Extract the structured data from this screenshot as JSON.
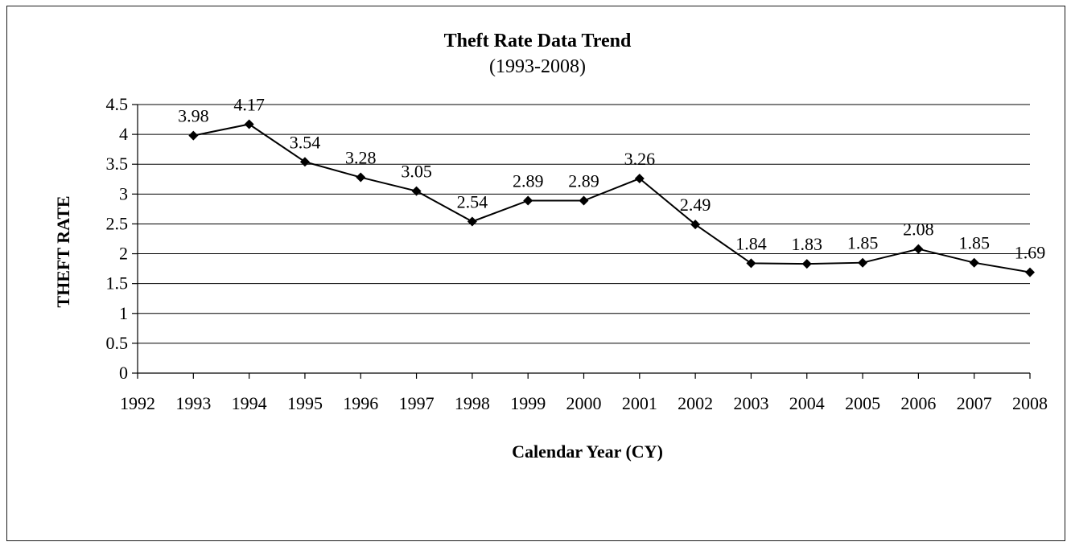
{
  "chart_data": {
    "type": "line",
    "title": "Theft Rate Data Trend",
    "subtitle": "(1993-2008)",
    "xlabel": "Calendar Year (CY)",
    "ylabel": "THEFT RATE",
    "x_tick_labels": [
      "1992",
      "1993",
      "1994",
      "1995",
      "1996",
      "1997",
      "1998",
      "1999",
      "2000",
      "2001",
      "2002",
      "2003",
      "2004",
      "2005",
      "2006",
      "2007",
      "2008"
    ],
    "y_tick_labels": [
      "0",
      "0.5",
      "1",
      "1.5",
      "2",
      "2.5",
      "3",
      "3.5",
      "4",
      "4.5"
    ],
    "ylim": [
      0,
      4.5
    ],
    "y_step": 0.5,
    "xlim": [
      1992,
      2008
    ],
    "grid": true,
    "legend": false,
    "series": [
      {
        "x": [
          1993,
          1994,
          1995,
          1996,
          1997,
          1998,
          1999,
          2000,
          2001,
          2002,
          2003,
          2004,
          2005,
          2006,
          2007,
          2008
        ],
        "y": [
          3.98,
          4.17,
          3.54,
          3.28,
          3.05,
          2.54,
          2.89,
          2.89,
          3.26,
          2.49,
          1.84,
          1.83,
          1.85,
          2.08,
          1.85,
          1.69
        ],
        "data_labels": [
          "3.98",
          "4.17",
          "3.54",
          "3.28",
          "3.05",
          "2.54",
          "2.89",
          "2.89",
          "3.26",
          "2.49",
          "1.84",
          "1.83",
          "1.85",
          "2.08",
          "1.85",
          "1.69"
        ],
        "color": "#000000",
        "marker": "diamond"
      }
    ]
  }
}
